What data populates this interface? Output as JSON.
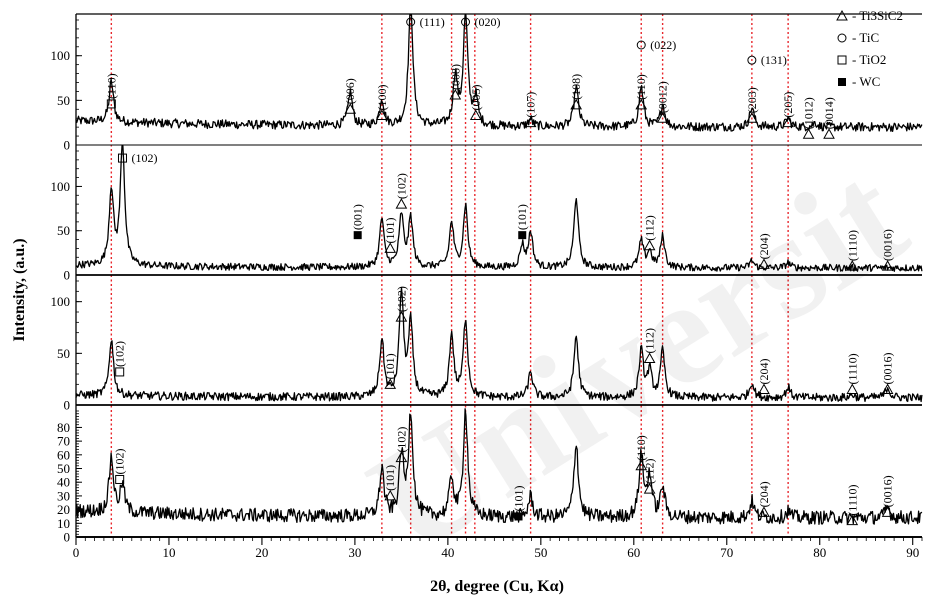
{
  "chart_data": {
    "type": "line",
    "title": "",
    "xlabel": "2θ, degree (Cu, Kα)",
    "ylabel": "Intensity, (a.u.)",
    "xlim": [
      0,
      91
    ],
    "x_ticks": [
      0,
      10,
      20,
      30,
      40,
      50,
      60,
      70,
      80,
      90
    ],
    "legend": {
      "placement": "top-right",
      "entries": [
        {
          "symbol": "Δ",
          "label": "- Ti3SiC2"
        },
        {
          "symbol": "○",
          "label": "- TiC"
        },
        {
          "symbol": "□",
          "label": "- TiO2"
        },
        {
          "symbol": "■",
          "label": "- WC"
        }
      ]
    },
    "reference_lines": {
      "style": "red dotted",
      "x": [
        3.8,
        32.9,
        36.0,
        40.4,
        41.9,
        42.9,
        48.9,
        60.8,
        63.1,
        72.7,
        76.6
      ]
    },
    "panels": [
      {
        "ylim": [
          0,
          140
        ],
        "y_ticks": [
          0,
          50,
          100
        ],
        "baseline": 20,
        "noise": 5,
        "peaks": [
          {
            "x": 3.8,
            "y": 45
          },
          {
            "x": 29.5,
            "y": 38
          },
          {
            "x": 32.9,
            "y": 30
          },
          {
            "x": 36.0,
            "y": 140
          },
          {
            "x": 40.8,
            "y": 55
          },
          {
            "x": 41.9,
            "y": 125
          },
          {
            "x": 43.0,
            "y": 30
          },
          {
            "x": 48.9,
            "y": 8
          },
          {
            "x": 53.8,
            "y": 45
          },
          {
            "x": 60.8,
            "y": 45
          },
          {
            "x": 63.1,
            "y": 25
          },
          {
            "x": 72.7,
            "y": 22
          },
          {
            "x": 76.6,
            "y": 10
          },
          {
            "x": 79.5,
            "y": 5
          }
        ],
        "annotations": [
          {
            "x": 3.8,
            "y": 46,
            "sym": "□",
            "text": "(110)"
          },
          {
            "x": 29.5,
            "y": 40,
            "sym": "Δ",
            "text": "(006)"
          },
          {
            "x": 32.9,
            "y": 33,
            "sym": "Δ",
            "text": "(100)"
          },
          {
            "x": 36.0,
            "y": 140,
            "sym": "○",
            "text": "(111)",
            "dir": "h"
          },
          {
            "x": 40.8,
            "y": 56,
            "sym": "Δ",
            "text": "(008)"
          },
          {
            "x": 41.9,
            "y": 140,
            "sym": "○",
            "text": "(020)",
            "dir": "h"
          },
          {
            "x": 43.0,
            "y": 33,
            "sym": "Δ",
            "text": "(005)"
          },
          {
            "x": 48.9,
            "y": 25,
            "sym": "Δ",
            "text": "(107)"
          },
          {
            "x": 53.8,
            "y": 45,
            "sym": "Δ",
            "text": "(108)"
          },
          {
            "x": 60.8,
            "y": 45,
            "sym": "Δ",
            "text": "(110)"
          },
          {
            "x": 60.8,
            "y": 112,
            "sym": "○",
            "text": "(022)",
            "dir": "h"
          },
          {
            "x": 63.1,
            "y": 30,
            "sym": "Δ",
            "text": "(0012)"
          },
          {
            "x": 72.7,
            "y": 30,
            "sym": "Δ",
            "text": "(203)"
          },
          {
            "x": 72.7,
            "y": 95,
            "sym": "○",
            "text": "(131)",
            "dir": "h"
          },
          {
            "x": 76.6,
            "y": 25,
            "sym": "Δ",
            "text": "(205)"
          },
          {
            "x": 78.8,
            "y": 12,
            "sym": "Δ",
            "text": "(1012)"
          },
          {
            "x": 81.0,
            "y": 12,
            "sym": "Δ",
            "text": "(0014)"
          }
        ]
      },
      {
        "ylim": [
          0,
          140
        ],
        "y_ticks": [
          0,
          50,
          100
        ],
        "baseline": 8,
        "noise": 4,
        "peaks": [
          {
            "x": 3.8,
            "y": 85
          },
          {
            "x": 5.0,
            "y": 140
          },
          {
            "x": 32.9,
            "y": 55
          },
          {
            "x": 35.0,
            "y": 58
          },
          {
            "x": 36.0,
            "y": 55
          },
          {
            "x": 40.4,
            "y": 50
          },
          {
            "x": 41.9,
            "y": 70
          },
          {
            "x": 48.0,
            "y": 25
          },
          {
            "x": 48.9,
            "y": 40
          },
          {
            "x": 53.8,
            "y": 80
          },
          {
            "x": 60.8,
            "y": 30
          },
          {
            "x": 61.7,
            "y": 18
          },
          {
            "x": 63.1,
            "y": 35
          },
          {
            "x": 72.7,
            "y": 8
          },
          {
            "x": 76.6,
            "y": 6
          }
        ],
        "annotations": [
          {
            "x": 5.0,
            "y": 132,
            "sym": "□",
            "text": "(102)",
            "dir": "h"
          },
          {
            "x": 30.3,
            "y": 45,
            "sym": "■",
            "text": "(001)"
          },
          {
            "x": 33.8,
            "y": 30,
            "sym": "Δ",
            "text": "(101)"
          },
          {
            "x": 35.0,
            "y": 80,
            "sym": "Δ",
            "text": "(102)"
          },
          {
            "x": 48.0,
            "y": 45,
            "sym": "■",
            "text": "(101)"
          },
          {
            "x": 61.7,
            "y": 33,
            "sym": "Δ",
            "text": "(112)"
          },
          {
            "x": 74.0,
            "y": 12,
            "sym": "Δ",
            "text": "(204)"
          },
          {
            "x": 83.5,
            "y": 10,
            "sym": "Δ",
            "text": "(1110)"
          },
          {
            "x": 87.3,
            "y": 10,
            "sym": "Δ",
            "text": "(0016)"
          }
        ]
      },
      {
        "ylim": [
          0,
          120
        ],
        "y_ticks": [
          0,
          50,
          100
        ],
        "baseline": 7,
        "noise": 4,
        "peaks": [
          {
            "x": 3.8,
            "y": 55
          },
          {
            "x": 32.9,
            "y": 55
          },
          {
            "x": 35.0,
            "y": 100
          },
          {
            "x": 36.0,
            "y": 70
          },
          {
            "x": 40.4,
            "y": 60
          },
          {
            "x": 41.9,
            "y": 75
          },
          {
            "x": 48.9,
            "y": 25
          },
          {
            "x": 53.8,
            "y": 60
          },
          {
            "x": 60.8,
            "y": 45
          },
          {
            "x": 61.7,
            "y": 25
          },
          {
            "x": 63.1,
            "y": 45
          },
          {
            "x": 72.7,
            "y": 15
          },
          {
            "x": 76.6,
            "y": 10
          },
          {
            "x": 83.5,
            "y": 3
          },
          {
            "x": 87.3,
            "y": 10
          }
        ],
        "annotations": [
          {
            "x": 4.7,
            "y": 32,
            "sym": "□",
            "text": "(102)"
          },
          {
            "x": 33.8,
            "y": 20,
            "sym": "Δ",
            "text": "(101)"
          },
          {
            "x": 35.0,
            "y": 85,
            "sym": "Δ",
            "text": "(102)"
          },
          {
            "x": 61.7,
            "y": 45,
            "sym": "Δ",
            "text": "(112)"
          },
          {
            "x": 74.0,
            "y": 15,
            "sym": "Δ",
            "text": "(204)"
          },
          {
            "x": 83.5,
            "y": 15,
            "sym": "Δ",
            "text": "(1110)"
          },
          {
            "x": 87.3,
            "y": 15,
            "sym": "Δ",
            "text": "(0016)"
          }
        ]
      },
      {
        "ylim": [
          0,
          92
        ],
        "y_ticks": [
          0,
          10,
          20,
          30,
          40,
          50,
          60,
          70,
          80
        ],
        "baseline": 14,
        "noise": 5,
        "peaks": [
          {
            "x": 3.8,
            "y": 40
          },
          {
            "x": 5.0,
            "y": 20
          },
          {
            "x": 32.9,
            "y": 35
          },
          {
            "x": 35.0,
            "y": 45
          },
          {
            "x": 36.0,
            "y": 75
          },
          {
            "x": 40.4,
            "y": 28
          },
          {
            "x": 41.9,
            "y": 78
          },
          {
            "x": 48.9,
            "y": 15
          },
          {
            "x": 53.8,
            "y": 55
          },
          {
            "x": 60.8,
            "y": 45
          },
          {
            "x": 61.7,
            "y": 30
          },
          {
            "x": 63.1,
            "y": 22
          },
          {
            "x": 72.7,
            "y": 12
          },
          {
            "x": 76.6,
            "y": 5
          },
          {
            "x": 87.3,
            "y": 8
          }
        ],
        "annotations": [
          {
            "x": 4.7,
            "y": 42,
            "sym": "□",
            "text": "(102)"
          },
          {
            "x": 33.8,
            "y": 30,
            "sym": "Δ",
            "text": "(101)"
          },
          {
            "x": 35.0,
            "y": 58,
            "sym": "Δ",
            "text": "(102)"
          },
          {
            "x": 47.6,
            "y": 15,
            "sym": "■",
            "text": "(101)"
          },
          {
            "x": 60.8,
            "y": 52,
            "sym": "Δ",
            "text": "(110)"
          },
          {
            "x": 61.7,
            "y": 35,
            "sym": "Δ",
            "text": "(112)"
          },
          {
            "x": 74.0,
            "y": 18,
            "sym": "Δ",
            "text": "(204)"
          },
          {
            "x": 83.5,
            "y": 12,
            "sym": "Δ",
            "text": "(1110)"
          },
          {
            "x": 87.3,
            "y": 18,
            "sym": "Δ",
            "text": "(0016)"
          }
        ]
      }
    ]
  },
  "watermark": "Universit"
}
